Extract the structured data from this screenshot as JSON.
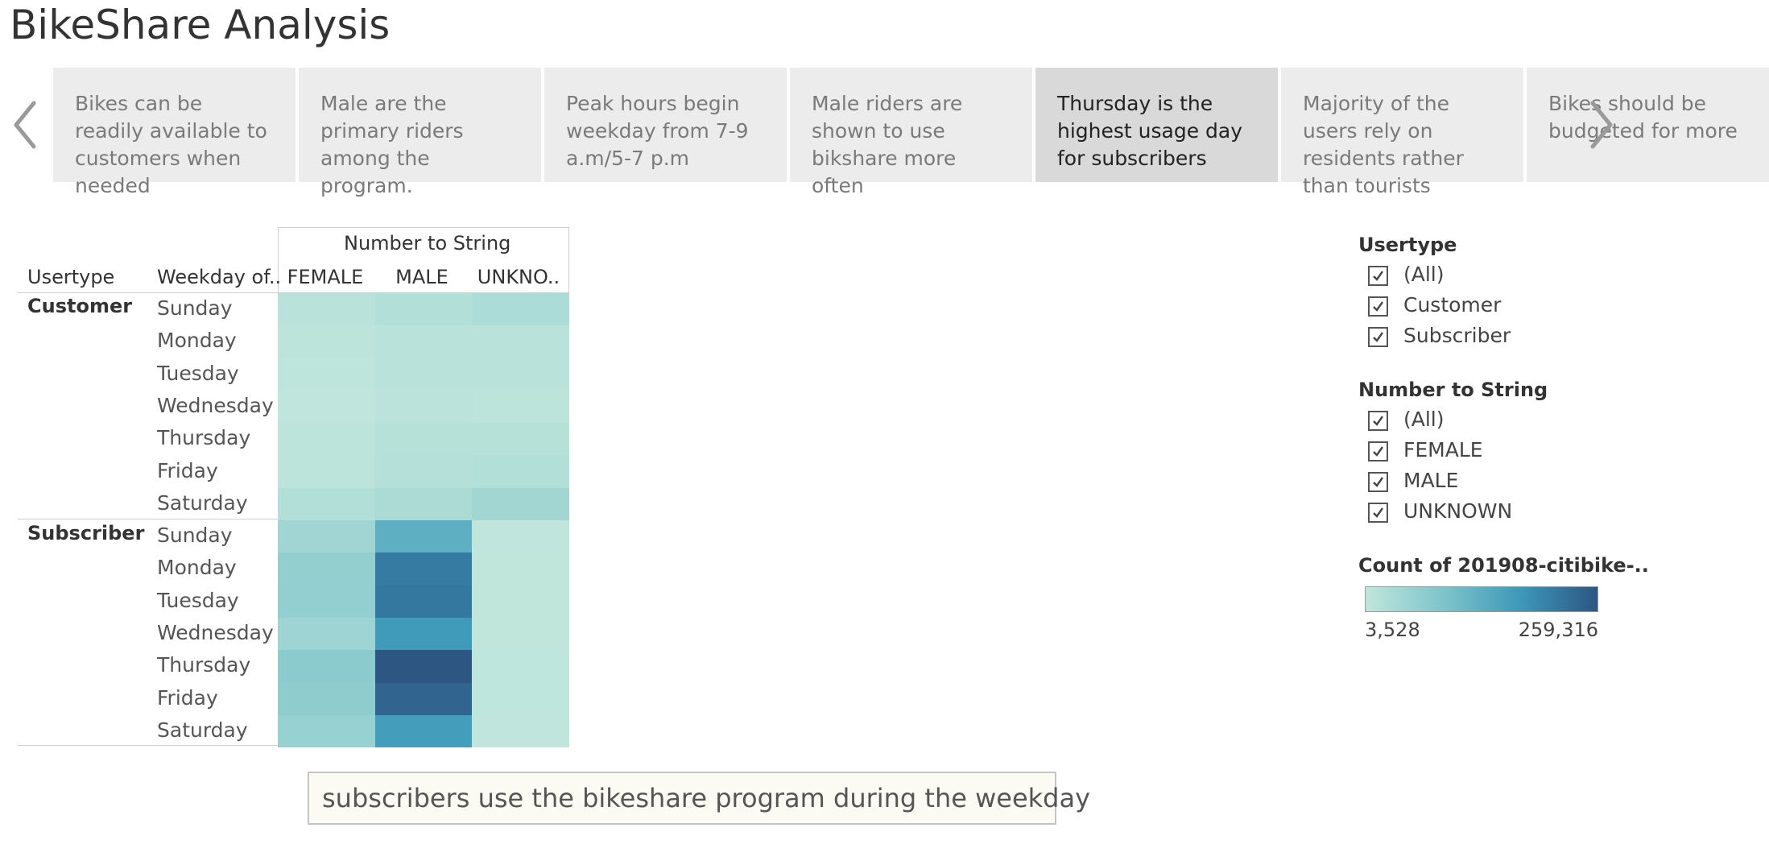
{
  "page": {
    "title": "BikeShare Analysis"
  },
  "story": {
    "active_index": 4,
    "points": [
      {
        "caption": "Bikes can be readily available to customers when needed"
      },
      {
        "caption": "Male are the primary riders among the program."
      },
      {
        "caption": "Peak hours begin weekday from 7-9 a.m/5-7 p.m"
      },
      {
        "caption": "Male riders are shown to use bikshare more often"
      },
      {
        "caption": "Thursday is the highest usage day for subscribers"
      },
      {
        "caption": "Majority of the users rely on residents rather than tourists"
      },
      {
        "caption": "Bikes should be budgeted for more"
      }
    ]
  },
  "heatmap": {
    "column_group_header": "Number to String",
    "row_header_1": "Usertype",
    "row_header_2": "Weekday of..",
    "column_headers": [
      "FEMALE",
      "MALE",
      "UNKNO.."
    ]
  },
  "chart_data": {
    "type": "heatmap",
    "title": "",
    "x_field": "Number to String",
    "columns": [
      "FEMALE",
      "MALE",
      "UNKNOWN"
    ],
    "row_fields": [
      "Usertype",
      "Weekday of.."
    ],
    "groups": [
      {
        "usertype": "Customer",
        "rows": [
          {
            "weekday": "Sunday",
            "values": [
              14000,
              20000,
              29000
            ]
          },
          {
            "weekday": "Monday",
            "values": [
              8000,
              13000,
              14000
            ]
          },
          {
            "weekday": "Tuesday",
            "values": [
              6000,
              12000,
              13000
            ]
          },
          {
            "weekday": "Wednesday",
            "values": [
              5000,
              10000,
              9000
            ]
          },
          {
            "weekday": "Thursday",
            "values": [
              8000,
              16000,
              17000
            ]
          },
          {
            "weekday": "Friday",
            "values": [
              9000,
              18000,
              20000
            ]
          },
          {
            "weekday": "Saturday",
            "values": [
              20000,
              30000,
              44000
            ]
          }
        ]
      },
      {
        "usertype": "Subscriber",
        "rows": [
          {
            "weekday": "Sunday",
            "values": [
              45000,
              130000,
              5000
            ]
          },
          {
            "weekday": "Monday",
            "values": [
              60000,
              210000,
              4000
            ]
          },
          {
            "weekday": "Tuesday",
            "values": [
              62000,
              215000,
              4000
            ]
          },
          {
            "weekday": "Wednesday",
            "values": [
              48000,
              170000,
              3528
            ]
          },
          {
            "weekday": "Thursday",
            "values": [
              72000,
              259316,
              4500
            ]
          },
          {
            "weekday": "Friday",
            "values": [
              68000,
              240000,
              4200
            ]
          },
          {
            "weekday": "Saturday",
            "values": [
              55000,
              165000,
              4800
            ]
          }
        ]
      }
    ],
    "color_range": [
      3528,
      259316
    ],
    "color_stops": [
      "#c0e6dc",
      "#7ec4ca",
      "#3d98b9",
      "#2d5683"
    ]
  },
  "filters": [
    {
      "title": "Usertype",
      "items": [
        "(All)",
        "Customer",
        "Subscriber"
      ],
      "checked": [
        true,
        true,
        true
      ]
    },
    {
      "title": "Number to String",
      "items": [
        "(All)",
        "FEMALE",
        "MALE",
        "UNKNOWN"
      ],
      "checked": [
        true,
        true,
        true,
        true
      ]
    }
  ],
  "legend": {
    "title": "Count of 201908-citibike-..",
    "min_label": "3,528",
    "max_label": "259,316"
  },
  "annotation": {
    "text": "subscribers use the bikeshare program during the weekday"
  }
}
